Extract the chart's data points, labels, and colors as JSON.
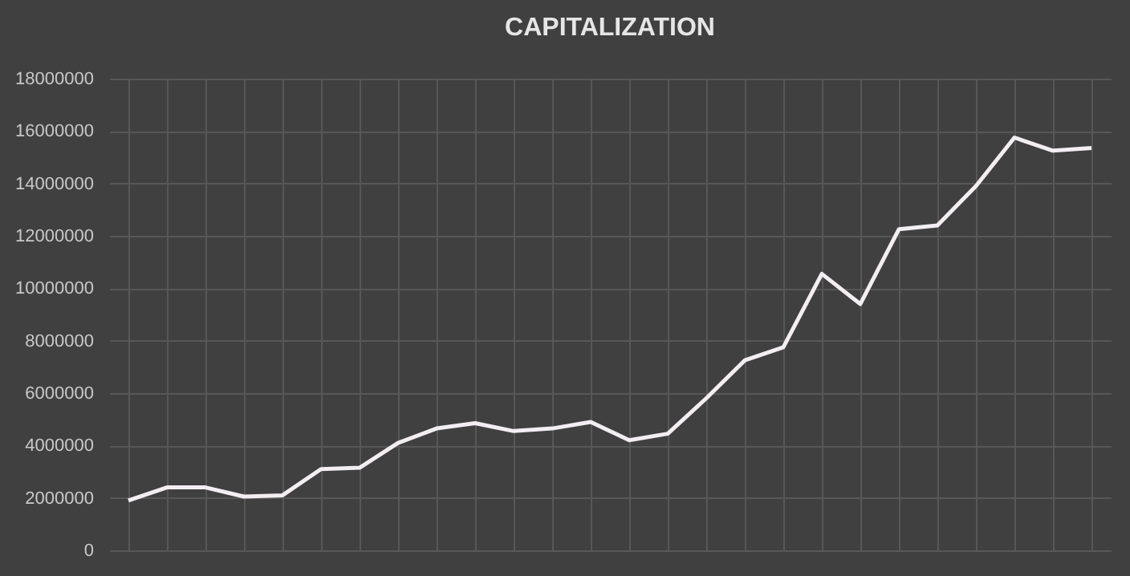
{
  "chart_data": {
    "type": "line",
    "title": "CAPITALIZATION",
    "categories": [
      null,
      null,
      null,
      null,
      null,
      null,
      null,
      null,
      null,
      null,
      null,
      null,
      null,
      null,
      null,
      null,
      null,
      null,
      null,
      null,
      null,
      null,
      null,
      null,
      null,
      null
    ],
    "series": [
      {
        "color": "#f2eef2",
        "values": [
          1900000,
          2400000,
          2400000,
          2050000,
          2100000,
          3100000,
          3150000,
          4100000,
          4650000,
          4850000,
          4550000,
          4650000,
          4900000,
          4200000,
          4450000,
          5800000,
          7250000,
          7750000,
          10550000,
          9400000,
          12250000,
          12400000,
          13900000,
          15750000,
          15250000,
          15350000
        ]
      }
    ],
    "ylim": [
      0,
      18000000
    ],
    "yticks": [
      0,
      2000000,
      4000000,
      6000000,
      8000000,
      10000000,
      12000000,
      14000000,
      16000000,
      18000000
    ],
    "grid": true,
    "tick_labels": "y",
    "marker": "none",
    "line_style": "solid"
  }
}
